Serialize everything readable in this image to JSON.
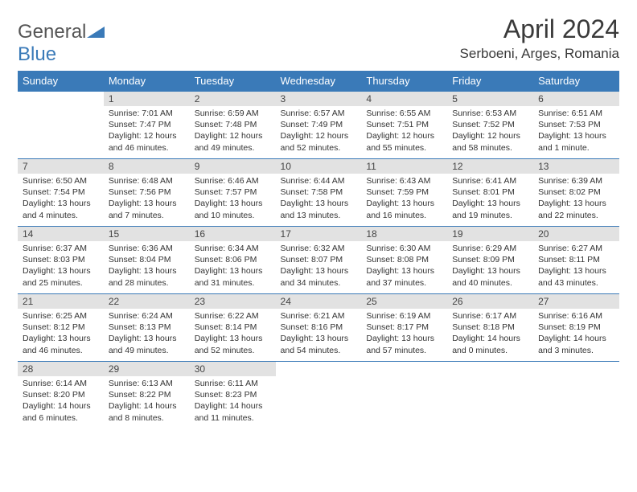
{
  "logo": {
    "main": "General",
    "sub": "Blue"
  },
  "title": "April 2024",
  "location": "Serboeni, Arges, Romania",
  "colors": {
    "header_bg": "#3a7ab8",
    "header_text": "#ffffff",
    "daynum_bg": "#e2e2e2",
    "border": "#3a7ab8",
    "logo_main": "#555555",
    "logo_sub": "#3a7ab8"
  },
  "weekday_labels": [
    "Sunday",
    "Monday",
    "Tuesday",
    "Wednesday",
    "Thursday",
    "Friday",
    "Saturday"
  ],
  "weeks": [
    [
      null,
      {
        "n": "1",
        "sunrise": "7:01 AM",
        "sunset": "7:47 PM",
        "daylight": "12 hours and 46 minutes."
      },
      {
        "n": "2",
        "sunrise": "6:59 AM",
        "sunset": "7:48 PM",
        "daylight": "12 hours and 49 minutes."
      },
      {
        "n": "3",
        "sunrise": "6:57 AM",
        "sunset": "7:49 PM",
        "daylight": "12 hours and 52 minutes."
      },
      {
        "n": "4",
        "sunrise": "6:55 AM",
        "sunset": "7:51 PM",
        "daylight": "12 hours and 55 minutes."
      },
      {
        "n": "5",
        "sunrise": "6:53 AM",
        "sunset": "7:52 PM",
        "daylight": "12 hours and 58 minutes."
      },
      {
        "n": "6",
        "sunrise": "6:51 AM",
        "sunset": "7:53 PM",
        "daylight": "13 hours and 1 minute."
      }
    ],
    [
      {
        "n": "7",
        "sunrise": "6:50 AM",
        "sunset": "7:54 PM",
        "daylight": "13 hours and 4 minutes."
      },
      {
        "n": "8",
        "sunrise": "6:48 AM",
        "sunset": "7:56 PM",
        "daylight": "13 hours and 7 minutes."
      },
      {
        "n": "9",
        "sunrise": "6:46 AM",
        "sunset": "7:57 PM",
        "daylight": "13 hours and 10 minutes."
      },
      {
        "n": "10",
        "sunrise": "6:44 AM",
        "sunset": "7:58 PM",
        "daylight": "13 hours and 13 minutes."
      },
      {
        "n": "11",
        "sunrise": "6:43 AM",
        "sunset": "7:59 PM",
        "daylight": "13 hours and 16 minutes."
      },
      {
        "n": "12",
        "sunrise": "6:41 AM",
        "sunset": "8:01 PM",
        "daylight": "13 hours and 19 minutes."
      },
      {
        "n": "13",
        "sunrise": "6:39 AM",
        "sunset": "8:02 PM",
        "daylight": "13 hours and 22 minutes."
      }
    ],
    [
      {
        "n": "14",
        "sunrise": "6:37 AM",
        "sunset": "8:03 PM",
        "daylight": "13 hours and 25 minutes."
      },
      {
        "n": "15",
        "sunrise": "6:36 AM",
        "sunset": "8:04 PM",
        "daylight": "13 hours and 28 minutes."
      },
      {
        "n": "16",
        "sunrise": "6:34 AM",
        "sunset": "8:06 PM",
        "daylight": "13 hours and 31 minutes."
      },
      {
        "n": "17",
        "sunrise": "6:32 AM",
        "sunset": "8:07 PM",
        "daylight": "13 hours and 34 minutes."
      },
      {
        "n": "18",
        "sunrise": "6:30 AM",
        "sunset": "8:08 PM",
        "daylight": "13 hours and 37 minutes."
      },
      {
        "n": "19",
        "sunrise": "6:29 AM",
        "sunset": "8:09 PM",
        "daylight": "13 hours and 40 minutes."
      },
      {
        "n": "20",
        "sunrise": "6:27 AM",
        "sunset": "8:11 PM",
        "daylight": "13 hours and 43 minutes."
      }
    ],
    [
      {
        "n": "21",
        "sunrise": "6:25 AM",
        "sunset": "8:12 PM",
        "daylight": "13 hours and 46 minutes."
      },
      {
        "n": "22",
        "sunrise": "6:24 AM",
        "sunset": "8:13 PM",
        "daylight": "13 hours and 49 minutes."
      },
      {
        "n": "23",
        "sunrise": "6:22 AM",
        "sunset": "8:14 PM",
        "daylight": "13 hours and 52 minutes."
      },
      {
        "n": "24",
        "sunrise": "6:21 AM",
        "sunset": "8:16 PM",
        "daylight": "13 hours and 54 minutes."
      },
      {
        "n": "25",
        "sunrise": "6:19 AM",
        "sunset": "8:17 PM",
        "daylight": "13 hours and 57 minutes."
      },
      {
        "n": "26",
        "sunrise": "6:17 AM",
        "sunset": "8:18 PM",
        "daylight": "14 hours and 0 minutes."
      },
      {
        "n": "27",
        "sunrise": "6:16 AM",
        "sunset": "8:19 PM",
        "daylight": "14 hours and 3 minutes."
      }
    ],
    [
      {
        "n": "28",
        "sunrise": "6:14 AM",
        "sunset": "8:20 PM",
        "daylight": "14 hours and 6 minutes."
      },
      {
        "n": "29",
        "sunrise": "6:13 AM",
        "sunset": "8:22 PM",
        "daylight": "14 hours and 8 minutes."
      },
      {
        "n": "30",
        "sunrise": "6:11 AM",
        "sunset": "8:23 PM",
        "daylight": "14 hours and 11 minutes."
      },
      null,
      null,
      null,
      null
    ]
  ],
  "labels": {
    "sunrise_prefix": "Sunrise: ",
    "sunset_prefix": "Sunset: ",
    "daylight_prefix": "Daylight: "
  }
}
